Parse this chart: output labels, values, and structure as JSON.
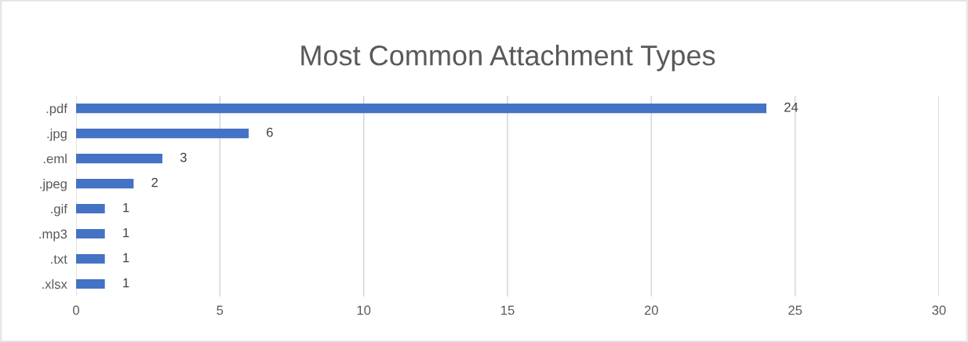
{
  "chart_data": {
    "type": "bar",
    "orientation": "horizontal",
    "title": "Most Common Attachment Types",
    "categories": [
      ".pdf",
      ".jpg",
      ".eml",
      ".jpeg",
      ".gif",
      ".mp3",
      ".txt",
      ".xlsx"
    ],
    "values": [
      24,
      6,
      3,
      2,
      1,
      1,
      1,
      1
    ],
    "color": "#4472c4",
    "xlim": [
      0,
      30
    ],
    "xticks": [
      0,
      5,
      10,
      15,
      20,
      25,
      30
    ],
    "grid": "x",
    "data_labels": true,
    "legend": false
  }
}
